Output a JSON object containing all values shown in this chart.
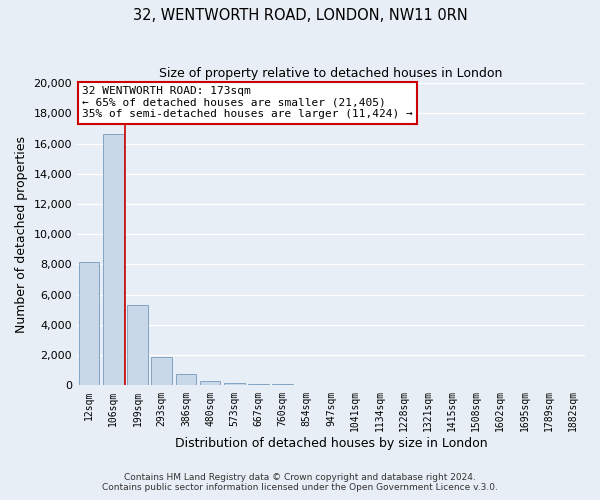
{
  "title": "32, WENTWORTH ROAD, LONDON, NW11 0RN",
  "subtitle": "Size of property relative to detached houses in London",
  "xlabel": "Distribution of detached houses by size in London",
  "ylabel": "Number of detached properties",
  "bar_color": "#c8d8e8",
  "bar_edge_color": "#7799bb",
  "background_color": "#e8eef5",
  "grid_color": "#ffffff",
  "categories": [
    "12sqm",
    "106sqm",
    "199sqm",
    "293sqm",
    "386sqm",
    "480sqm",
    "573sqm",
    "667sqm",
    "760sqm",
    "854sqm",
    "947sqm",
    "1041sqm",
    "1134sqm",
    "1228sqm",
    "1321sqm",
    "1415sqm",
    "1508sqm",
    "1602sqm",
    "1695sqm",
    "1789sqm",
    "1882sqm"
  ],
  "values": [
    8150,
    16600,
    5300,
    1850,
    750,
    300,
    175,
    120,
    80,
    50,
    0,
    0,
    0,
    0,
    0,
    0,
    0,
    0,
    0,
    0,
    0
  ],
  "ylim": [
    0,
    20000
  ],
  "yticks": [
    0,
    2000,
    4000,
    6000,
    8000,
    10000,
    12000,
    14000,
    16000,
    18000,
    20000
  ],
  "vline_color": "#cc0000",
  "vline_pos": 1.5,
  "annotation_title": "32 WENTWORTH ROAD: 173sqm",
  "annotation_line1": "← 65% of detached houses are smaller (21,405)",
  "annotation_line2": "35% of semi-detached houses are larger (11,424) →",
  "annotation_box_color": "#ffffff",
  "annotation_box_edge": "#cc0000",
  "footer1": "Contains HM Land Registry data © Crown copyright and database right 2024.",
  "footer2": "Contains public sector information licensed under the Open Government Licence v.3.0."
}
